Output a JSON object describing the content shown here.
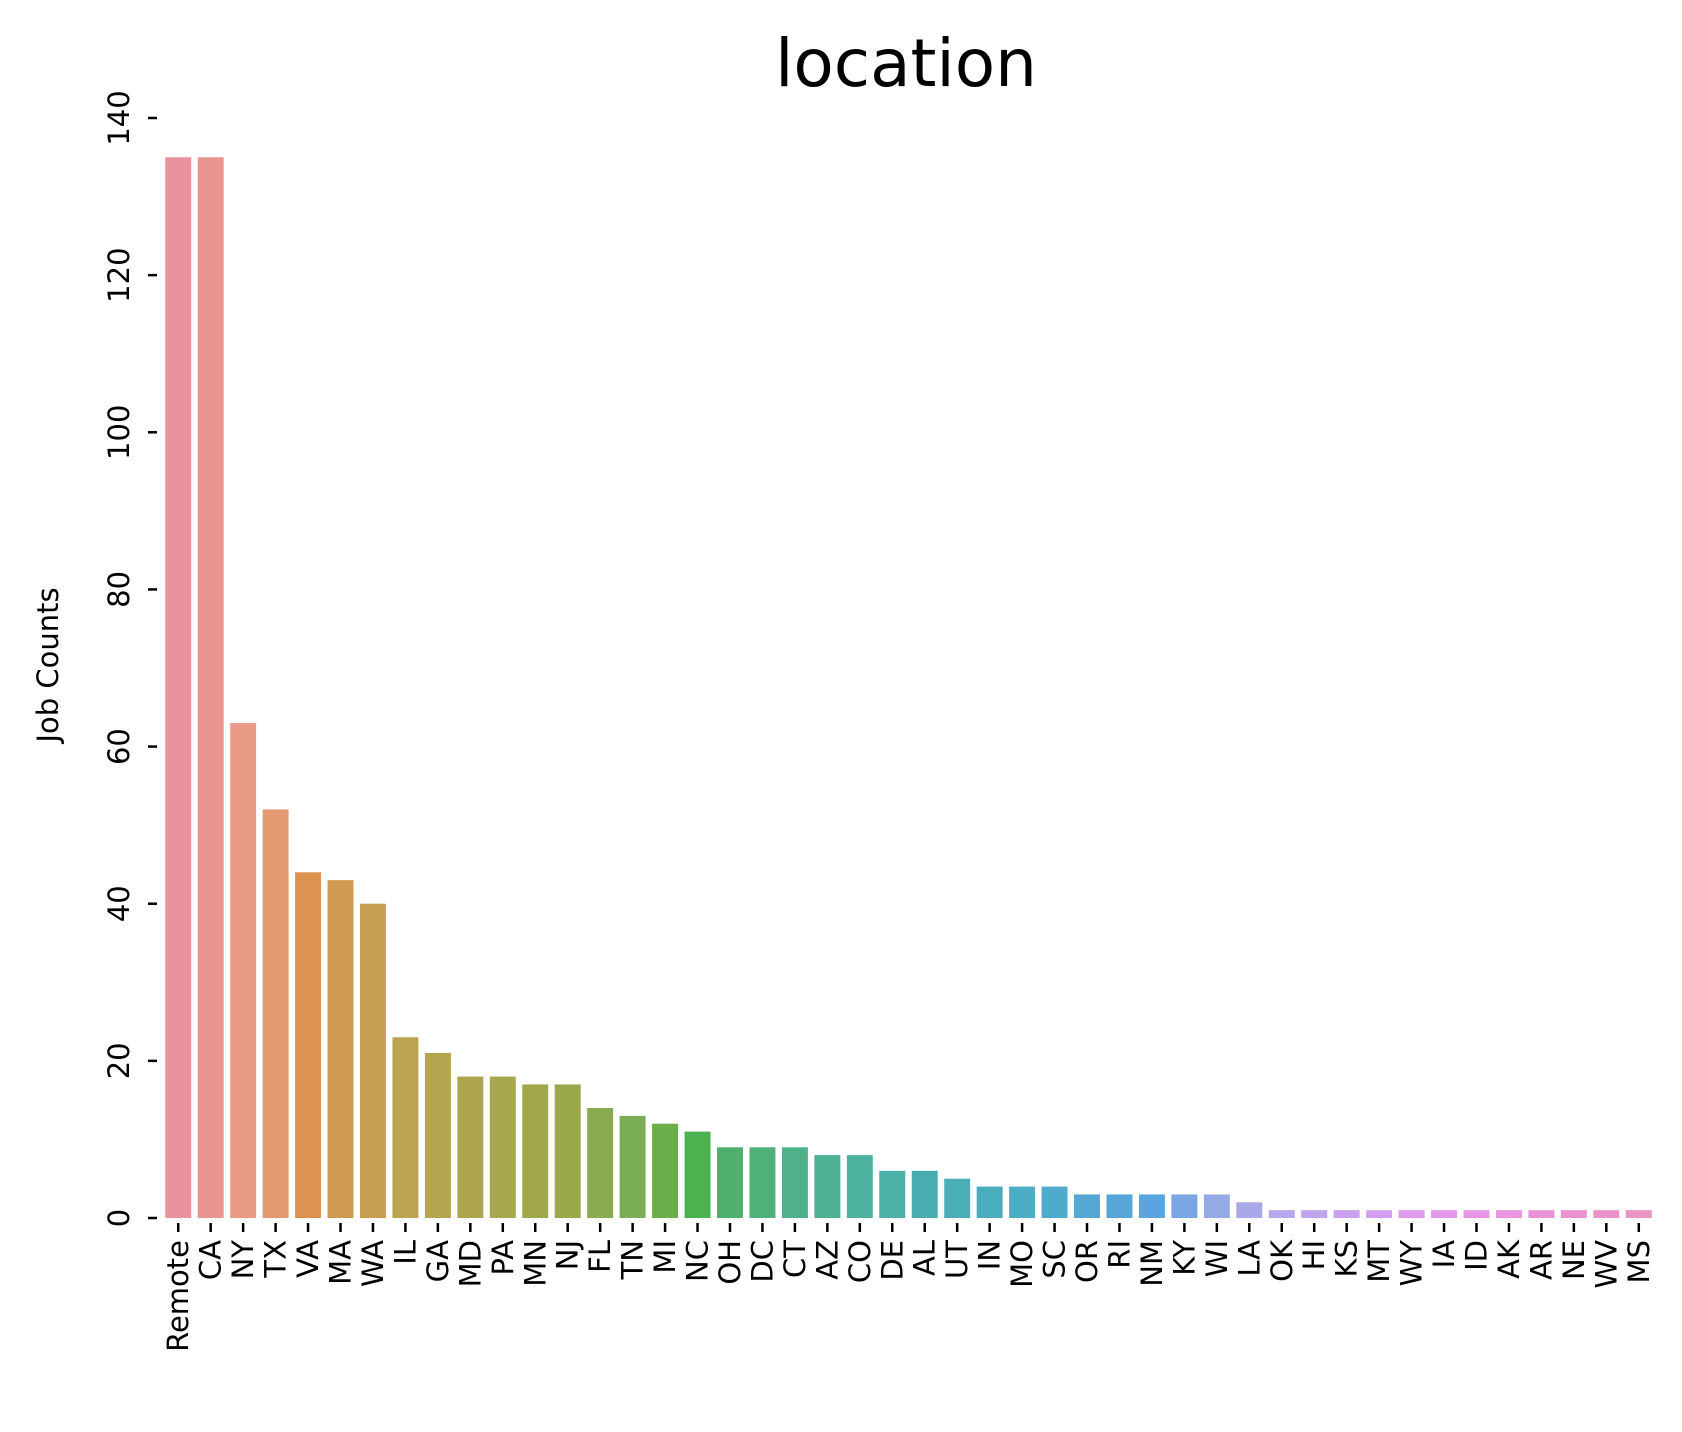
{
  "chart_data": {
    "type": "bar",
    "title": "location",
    "xlabel": "",
    "ylabel": "Job Counts",
    "ylim": [
      0,
      140
    ],
    "yticks": [
      0,
      20,
      40,
      60,
      80,
      100,
      120,
      140
    ],
    "grid": false,
    "categories": [
      "Remote",
      "CA",
      "NY",
      "TX",
      "VA",
      "MA",
      "WA",
      "IL",
      "GA",
      "MD",
      "PA",
      "MN",
      "NJ",
      "FL",
      "TN",
      "MI",
      "NC",
      "OH",
      "DC",
      "CT",
      "AZ",
      "CO",
      "DE",
      "AL",
      "UT",
      "IN",
      "MO",
      "SC",
      "OR",
      "RI",
      "NM",
      "KY",
      "WI",
      "LA",
      "OK",
      "HI",
      "KS",
      "MT",
      "WY",
      "IA",
      "ID",
      "AK",
      "AR",
      "NE",
      "WV",
      "MS"
    ],
    "values": [
      135,
      135,
      63,
      52,
      44,
      43,
      40,
      23,
      21,
      18,
      18,
      17,
      17,
      14,
      13,
      12,
      11,
      9,
      9,
      9,
      8,
      8,
      6,
      6,
      5,
      4,
      4,
      4,
      3,
      3,
      3,
      3,
      3,
      2,
      1,
      1,
      1,
      1,
      1,
      1,
      1,
      1,
      1,
      1,
      1,
      1
    ],
    "colors": [
      "#e8939d",
      "#e8968f",
      "#e89a86",
      "#e49a70",
      "#de9250",
      "#d09b50",
      "#c89e50",
      "#bba34f",
      "#b4a44e",
      "#ada64e",
      "#a7a74e",
      "#a0a74c",
      "#9aa84b",
      "#8aaa50",
      "#7aad55",
      "#6aae4a",
      "#4cb24f",
      "#4eb06c",
      "#4fb07a",
      "#4fb189",
      "#4eb196",
      "#4db1a0",
      "#4bb0a8",
      "#4aaeb0",
      "#4badb5",
      "#4aadbd",
      "#4cadc4",
      "#4fabcc",
      "#54a8d3",
      "#56a6d8",
      "#5aa5df",
      "#7aa6e3",
      "#95a9e6",
      "#a9a9e9",
      "#b6a6ec",
      "#c0a4ee",
      "#caa1ef",
      "#d49ef0",
      "#de9bef",
      "#e598eb",
      "#e796e5",
      "#e995df",
      "#ea94d8",
      "#ea93d1",
      "#ea93c9",
      "#e994c1"
    ]
  }
}
